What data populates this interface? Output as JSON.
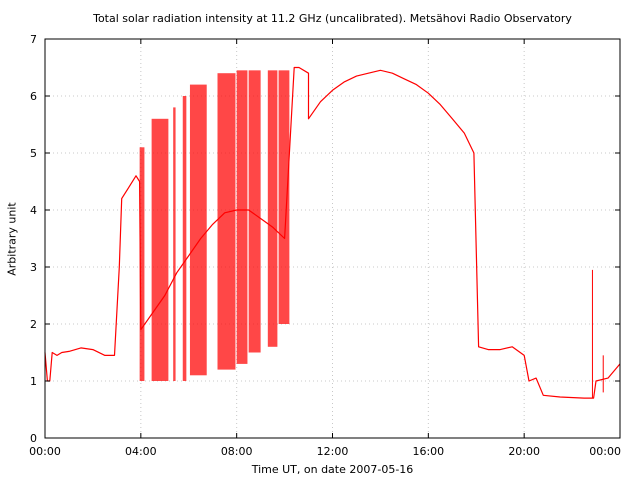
{
  "chart_data": {
    "type": "line",
    "title": "Total solar radiation intensity at 11.2 GHz (uncalibrated). Metsähovi Radio Observatory",
    "xlabel": "Time UT, on date 2007-05-16",
    "ylabel": "Arbitrary unit",
    "x_unit": "hours UT",
    "xlim": [
      0,
      24
    ],
    "ylim": [
      0,
      7
    ],
    "grid": true,
    "legend": "none",
    "line_color": "#ff0000",
    "x_ticks": [
      {
        "value": 0,
        "label": "00:00"
      },
      {
        "value": 4,
        "label": "04:00"
      },
      {
        "value": 8,
        "label": "08:00"
      },
      {
        "value": 12,
        "label": "12:00"
      },
      {
        "value": 16,
        "label": "16:00"
      },
      {
        "value": 20,
        "label": "20:00"
      },
      {
        "value": 24,
        "label": "00:00"
      }
    ],
    "y_ticks": [
      {
        "value": 0,
        "label": "0"
      },
      {
        "value": 1,
        "label": "1"
      },
      {
        "value": 2,
        "label": "2"
      },
      {
        "value": 3,
        "label": "3"
      },
      {
        "value": 4,
        "label": "4"
      },
      {
        "value": 5,
        "label": "5"
      },
      {
        "value": 6,
        "label": "6"
      },
      {
        "value": 7,
        "label": "7"
      }
    ],
    "series": [
      {
        "values": [
          [
            0.0,
            1.5
          ],
          [
            0.1,
            1.0
          ],
          [
            0.2,
            1.0
          ],
          [
            0.3,
            1.5
          ],
          [
            0.5,
            1.45
          ],
          [
            0.7,
            1.5
          ],
          [
            1.0,
            1.52
          ],
          [
            1.5,
            1.58
          ],
          [
            2.0,
            1.55
          ],
          [
            2.5,
            1.45
          ],
          [
            2.9,
            1.45
          ],
          [
            3.1,
            3.0
          ],
          [
            3.2,
            4.2
          ],
          [
            3.5,
            4.4
          ],
          [
            3.8,
            4.6
          ],
          [
            3.95,
            4.5
          ],
          [
            4.0,
            1.9
          ],
          [
            4.5,
            2.2
          ],
          [
            5.0,
            2.5
          ],
          [
            5.5,
            2.9
          ],
          [
            6.0,
            3.2
          ],
          [
            6.5,
            3.5
          ],
          [
            7.0,
            3.75
          ],
          [
            7.5,
            3.95
          ],
          [
            8.0,
            4.0
          ],
          [
            8.5,
            4.0
          ],
          [
            9.0,
            3.85
          ],
          [
            9.5,
            3.7
          ],
          [
            10.0,
            3.5
          ],
          [
            10.4,
            6.5
          ],
          [
            10.6,
            6.5
          ],
          [
            11.0,
            6.4
          ],
          [
            11.0,
            5.6
          ],
          [
            11.5,
            5.9
          ],
          [
            12.0,
            6.1
          ],
          [
            12.5,
            6.25
          ],
          [
            13.0,
            6.35
          ],
          [
            13.5,
            6.4
          ],
          [
            14.0,
            6.45
          ],
          [
            14.5,
            6.4
          ],
          [
            15.0,
            6.3
          ],
          [
            15.5,
            6.2
          ],
          [
            16.0,
            6.05
          ],
          [
            16.5,
            5.85
          ],
          [
            17.0,
            5.6
          ],
          [
            17.5,
            5.35
          ],
          [
            17.9,
            5.0
          ],
          [
            18.1,
            1.6
          ],
          [
            18.5,
            1.55
          ],
          [
            19.0,
            1.55
          ],
          [
            19.5,
            1.6
          ],
          [
            20.0,
            1.45
          ],
          [
            20.2,
            1.0
          ],
          [
            20.5,
            1.05
          ],
          [
            20.8,
            0.75
          ],
          [
            21.5,
            0.72
          ],
          [
            22.5,
            0.7
          ],
          [
            22.9,
            0.7
          ],
          [
            23.0,
            1.0
          ],
          [
            23.5,
            1.05
          ],
          [
            24.0,
            1.3
          ]
        ]
      }
    ],
    "dropouts": [
      {
        "x0": 3.95,
        "x1": 4.15,
        "low": 1.0,
        "high": 5.1
      },
      {
        "x0": 4.45,
        "x1": 5.15,
        "low": 1.0,
        "high": 5.6
      },
      {
        "x0": 5.35,
        "x1": 5.45,
        "low": 1.0,
        "high": 5.8
      },
      {
        "x0": 5.75,
        "x1": 5.9,
        "low": 1.0,
        "high": 6.0
      },
      {
        "x0": 6.05,
        "x1": 6.75,
        "low": 1.1,
        "high": 6.2
      },
      {
        "x0": 7.2,
        "x1": 7.95,
        "low": 1.2,
        "high": 6.4
      },
      {
        "x0": 8.0,
        "x1": 8.45,
        "low": 1.3,
        "high": 6.45
      },
      {
        "x0": 8.5,
        "x1": 9.0,
        "low": 1.5,
        "high": 6.45
      },
      {
        "x0": 9.3,
        "x1": 9.7,
        "low": 1.6,
        "high": 6.45
      },
      {
        "x0": 9.75,
        "x1": 10.2,
        "low": 2.0,
        "high": 6.45
      }
    ],
    "spikes": [
      {
        "x": 22.85,
        "low": 0.7,
        "high": 2.95
      },
      {
        "x": 23.3,
        "low": 0.8,
        "high": 1.45
      }
    ]
  }
}
